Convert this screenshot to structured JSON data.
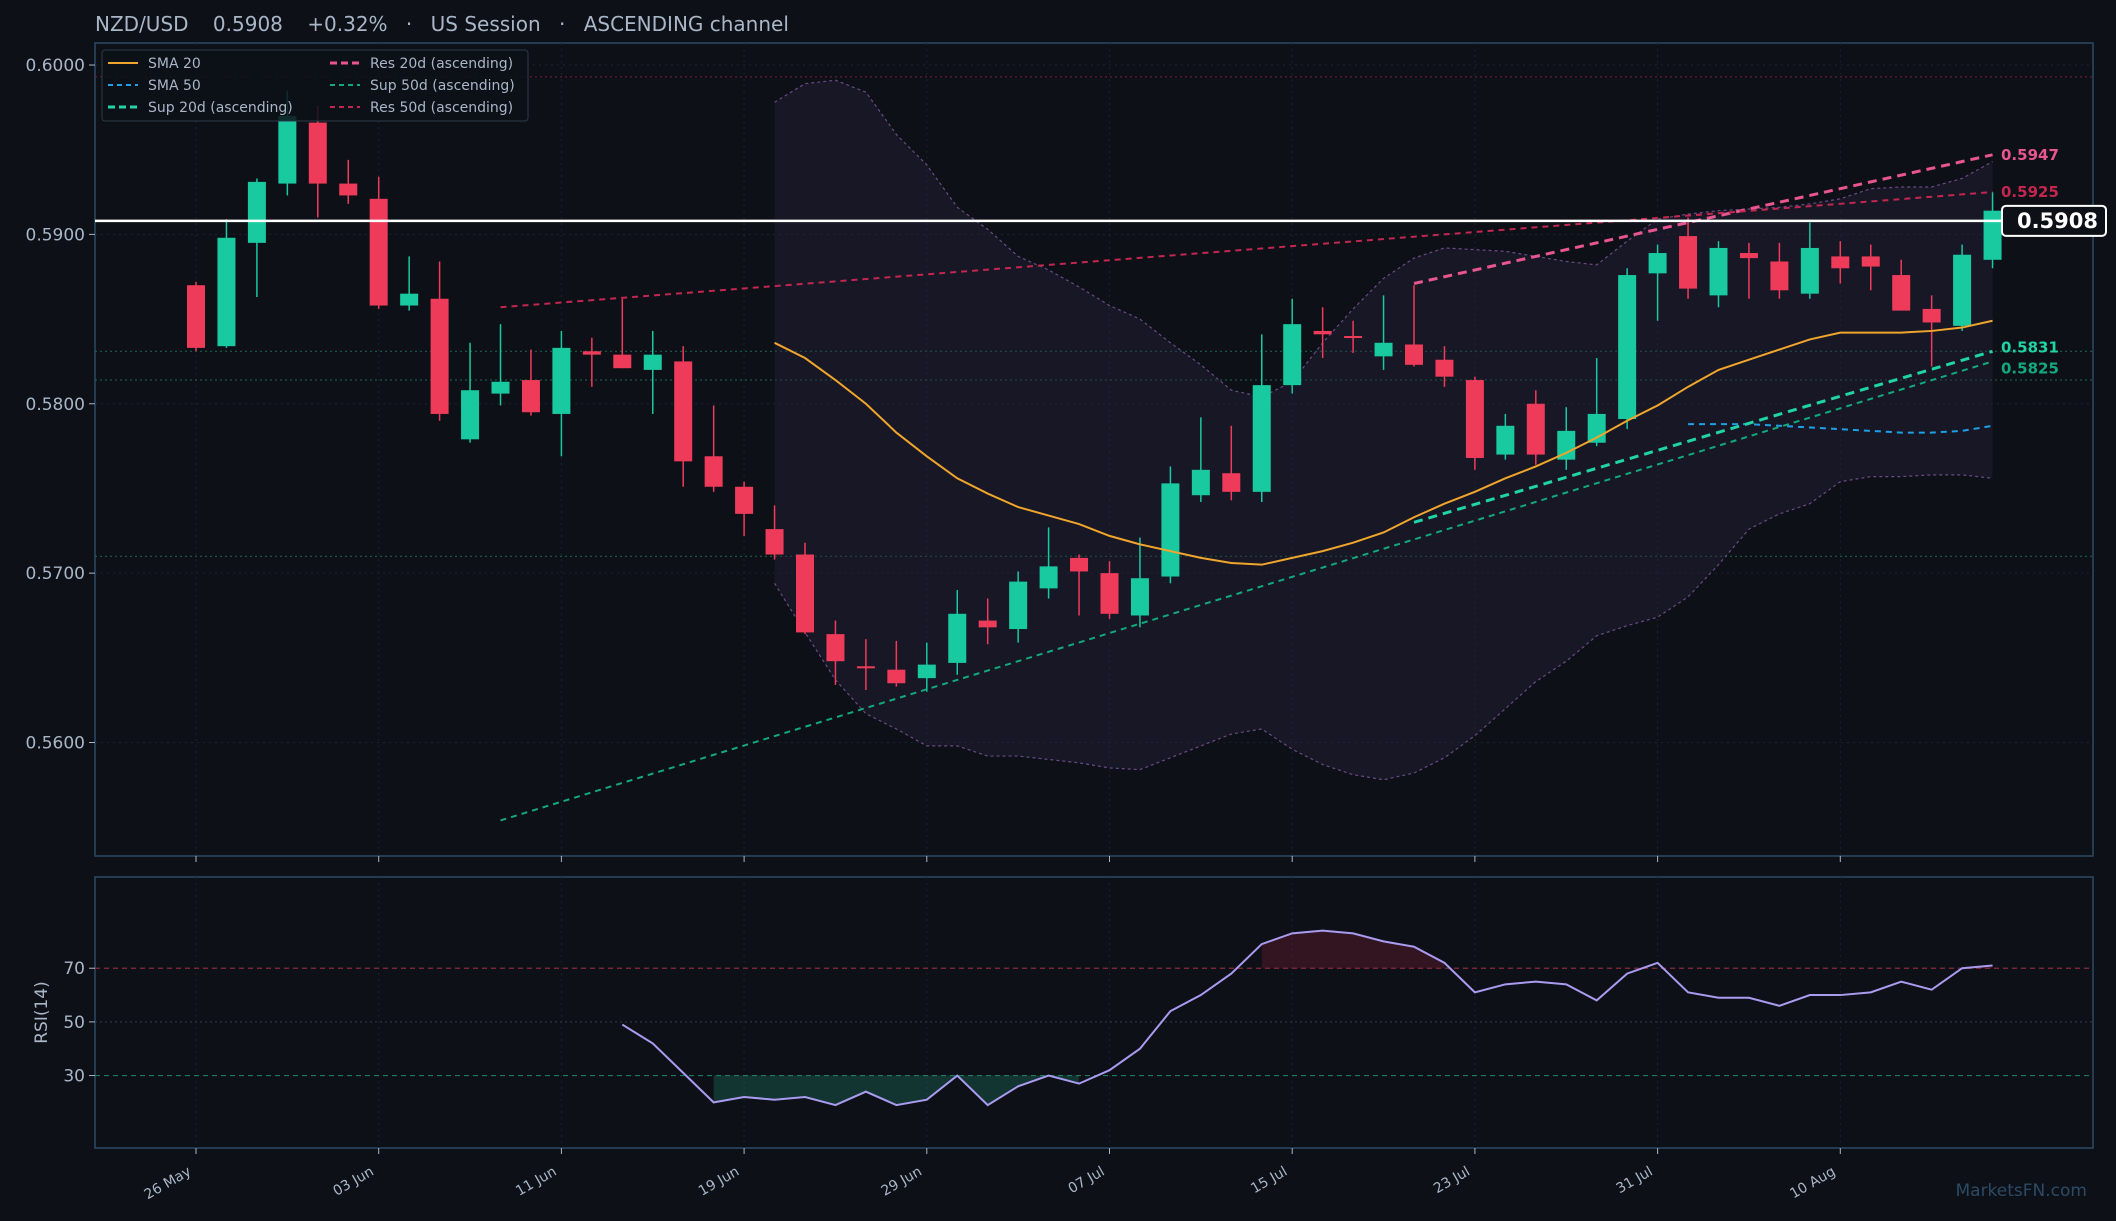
{
  "header": {
    "symbol": "NZD/USD",
    "price": "0.5908",
    "change": "+0.32%",
    "session": "US Session",
    "channel": "ASCENDING channel",
    "separator": "·"
  },
  "watermark": "MarketsFN.com",
  "colors": {
    "background": "#0d1017",
    "axes_border": "#2c4a66",
    "text": "#a9b6c8",
    "bull": "#19c9a0",
    "bear": "#ef3b5a",
    "sma20": "#f0a52c",
    "sma50": "#1ea0e6",
    "sup20": "#20d4a5",
    "sup50": "#12a97c",
    "res20": "#e9568f",
    "res50": "#c3274f",
    "rsi": "#a99bf0",
    "band": "#6a4a86",
    "price_line": "#ffffff"
  },
  "chart_data": [
    {
      "type": "candlestick",
      "title": "",
      "ylim": [
        0.5533,
        0.6013
      ],
      "yticks": [
        "0.5600",
        "0.5700",
        "0.5800",
        "0.5900",
        "0.6000"
      ],
      "xticks": [
        {
          "label": "26 May",
          "index": 0
        },
        {
          "label": "03 Jun",
          "index": 6
        },
        {
          "label": "11 Jun",
          "index": 12
        },
        {
          "label": "19 Jun",
          "index": 18
        },
        {
          "label": "29 Jun",
          "index": 24
        },
        {
          "label": "07 Jul",
          "index": 30
        },
        {
          "label": "15 Jul",
          "index": 36
        },
        {
          "label": "23 Jul",
          "index": 42
        },
        {
          "label": "31 Jul",
          "index": 48
        },
        {
          "label": "10 Aug",
          "index": 54
        }
      ],
      "candles": [
        {
          "o": 0.587,
          "h": 0.5872,
          "l": 0.5831,
          "c": 0.5833
        },
        {
          "o": 0.5834,
          "h": 0.5909,
          "l": 0.5833,
          "c": 0.5898
        },
        {
          "o": 0.5895,
          "h": 0.5933,
          "l": 0.5863,
          "c": 0.5931
        },
        {
          "o": 0.593,
          "h": 0.5985,
          "l": 0.5923,
          "c": 0.597
        },
        {
          "o": 0.5966,
          "h": 0.5976,
          "l": 0.591,
          "c": 0.593
        },
        {
          "o": 0.593,
          "h": 0.5944,
          "l": 0.5918,
          "c": 0.5923
        },
        {
          "o": 0.5921,
          "h": 0.5934,
          "l": 0.5856,
          "c": 0.5858
        },
        {
          "o": 0.5858,
          "h": 0.5887,
          "l": 0.5855,
          "c": 0.5865
        },
        {
          "o": 0.5862,
          "h": 0.5884,
          "l": 0.579,
          "c": 0.5794
        },
        {
          "o": 0.5779,
          "h": 0.5836,
          "l": 0.5777,
          "c": 0.5808
        },
        {
          "o": 0.5806,
          "h": 0.5847,
          "l": 0.5799,
          "c": 0.5813
        },
        {
          "o": 0.5814,
          "h": 0.5832,
          "l": 0.5793,
          "c": 0.5795
        },
        {
          "o": 0.5794,
          "h": 0.5843,
          "l": 0.5769,
          "c": 0.5833
        },
        {
          "o": 0.5831,
          "h": 0.5839,
          "l": 0.581,
          "c": 0.5829
        },
        {
          "o": 0.5829,
          "h": 0.5862,
          "l": 0.5821,
          "c": 0.5821
        },
        {
          "o": 0.582,
          "h": 0.5843,
          "l": 0.5794,
          "c": 0.5829
        },
        {
          "o": 0.5825,
          "h": 0.5834,
          "l": 0.5751,
          "c": 0.5766
        },
        {
          "o": 0.5769,
          "h": 0.5799,
          "l": 0.5748,
          "c": 0.5751
        },
        {
          "o": 0.5751,
          "h": 0.5754,
          "l": 0.5722,
          "c": 0.5735
        },
        {
          "o": 0.5726,
          "h": 0.574,
          "l": 0.5708,
          "c": 0.5711
        },
        {
          "o": 0.5711,
          "h": 0.5718,
          "l": 0.5664,
          "c": 0.5665
        },
        {
          "o": 0.5664,
          "h": 0.5672,
          "l": 0.5634,
          "c": 0.5648
        },
        {
          "o": 0.5645,
          "h": 0.5661,
          "l": 0.5631,
          "c": 0.5644
        },
        {
          "o": 0.5643,
          "h": 0.566,
          "l": 0.5633,
          "c": 0.5635
        },
        {
          "o": 0.5638,
          "h": 0.5659,
          "l": 0.563,
          "c": 0.5646
        },
        {
          "o": 0.5647,
          "h": 0.569,
          "l": 0.564,
          "c": 0.5676
        },
        {
          "o": 0.5672,
          "h": 0.5685,
          "l": 0.5658,
          "c": 0.5668
        },
        {
          "o": 0.5667,
          "h": 0.5701,
          "l": 0.5659,
          "c": 0.5695
        },
        {
          "o": 0.5691,
          "h": 0.5727,
          "l": 0.5685,
          "c": 0.5704
        },
        {
          "o": 0.5709,
          "h": 0.5711,
          "l": 0.5675,
          "c": 0.5701
        },
        {
          "o": 0.57,
          "h": 0.5707,
          "l": 0.5673,
          "c": 0.5676
        },
        {
          "o": 0.5675,
          "h": 0.5721,
          "l": 0.5668,
          "c": 0.5697
        },
        {
          "o": 0.5698,
          "h": 0.5763,
          "l": 0.5694,
          "c": 0.5753
        },
        {
          "o": 0.5746,
          "h": 0.5792,
          "l": 0.5742,
          "c": 0.5761
        },
        {
          "o": 0.5759,
          "h": 0.5787,
          "l": 0.5743,
          "c": 0.5748
        },
        {
          "o": 0.5748,
          "h": 0.5841,
          "l": 0.5742,
          "c": 0.5811
        },
        {
          "o": 0.5811,
          "h": 0.5862,
          "l": 0.5806,
          "c": 0.5847
        },
        {
          "o": 0.5843,
          "h": 0.5857,
          "l": 0.5827,
          "c": 0.5841
        },
        {
          "o": 0.584,
          "h": 0.5849,
          "l": 0.583,
          "c": 0.5839
        },
        {
          "o": 0.5828,
          "h": 0.5864,
          "l": 0.582,
          "c": 0.5836
        },
        {
          "o": 0.5835,
          "h": 0.587,
          "l": 0.5822,
          "c": 0.5823
        },
        {
          "o": 0.5826,
          "h": 0.5834,
          "l": 0.581,
          "c": 0.5816
        },
        {
          "o": 0.5814,
          "h": 0.5816,
          "l": 0.5761,
          "c": 0.5768
        },
        {
          "o": 0.577,
          "h": 0.5794,
          "l": 0.5767,
          "c": 0.5787
        },
        {
          "o": 0.58,
          "h": 0.5808,
          "l": 0.5764,
          "c": 0.577
        },
        {
          "o": 0.5767,
          "h": 0.5798,
          "l": 0.5761,
          "c": 0.5784
        },
        {
          "o": 0.5777,
          "h": 0.5827,
          "l": 0.5775,
          "c": 0.5794
        },
        {
          "o": 0.5791,
          "h": 0.588,
          "l": 0.5785,
          "c": 0.5876
        },
        {
          "o": 0.5877,
          "h": 0.5894,
          "l": 0.5849,
          "c": 0.5889
        },
        {
          "o": 0.5899,
          "h": 0.591,
          "l": 0.5862,
          "c": 0.5868
        },
        {
          "o": 0.5864,
          "h": 0.5896,
          "l": 0.5857,
          "c": 0.5892
        },
        {
          "o": 0.5889,
          "h": 0.5895,
          "l": 0.5862,
          "c": 0.5886
        },
        {
          "o": 0.5884,
          "h": 0.5895,
          "l": 0.5862,
          "c": 0.5867
        },
        {
          "o": 0.5865,
          "h": 0.5907,
          "l": 0.5862,
          "c": 0.5892
        },
        {
          "o": 0.5887,
          "h": 0.5896,
          "l": 0.5871,
          "c": 0.588
        },
        {
          "o": 0.5887,
          "h": 0.5894,
          "l": 0.5867,
          "c": 0.5881
        },
        {
          "o": 0.5876,
          "h": 0.5885,
          "l": 0.5855,
          "c": 0.5855
        },
        {
          "o": 0.5856,
          "h": 0.5864,
          "l": 0.5822,
          "c": 0.5848
        },
        {
          "o": 0.5846,
          "h": 0.5894,
          "l": 0.5843,
          "c": 0.5888
        },
        {
          "o": 0.5885,
          "h": 0.5925,
          "l": 0.588,
          "c": 0.5914
        }
      ],
      "last_price": 0.5908,
      "last_price_label": "0.5908",
      "horizontal_levels": [
        {
          "y": 0.5993,
          "kind": "resistance"
        },
        {
          "y": 0.5831,
          "kind": "support"
        },
        {
          "y": 0.5814,
          "kind": "support"
        },
        {
          "y": 0.571,
          "kind": "support"
        }
      ],
      "series": [
        {
          "name": "SMA 20",
          "key": "sma20",
          "style": "solid",
          "x": [
            19,
            20,
            21,
            22,
            23,
            24,
            25,
            26,
            27,
            28,
            29,
            30,
            31,
            32,
            33,
            34,
            35,
            36,
            37,
            38,
            39,
            40,
            41,
            42,
            43,
            44,
            45,
            46,
            47,
            48,
            49,
            50,
            51,
            52,
            53,
            54,
            55,
            56,
            57,
            58,
            59
          ],
          "y": [
            0.5836,
            0.5827,
            0.5814,
            0.58,
            0.5783,
            0.5769,
            0.5756,
            0.5747,
            0.5739,
            0.5734,
            0.5729,
            0.5722,
            0.5717,
            0.5713,
            0.5709,
            0.5706,
            0.5705,
            0.5709,
            0.5713,
            0.5718,
            0.5724,
            0.5733,
            0.5741,
            0.5748,
            0.5756,
            0.5763,
            0.5771,
            0.578,
            0.579,
            0.5799,
            0.581,
            0.582,
            0.5826,
            0.5832,
            0.5838,
            0.5842,
            0.5842,
            0.5842,
            0.5843,
            0.5845,
            0.5849
          ]
        },
        {
          "name": "SMA 50",
          "key": "sma50",
          "style": "dashed",
          "x": [
            49,
            50,
            51,
            52,
            53,
            54,
            55,
            56,
            57,
            58,
            59
          ],
          "y": [
            0.5788,
            0.5788,
            0.5788,
            0.5787,
            0.5786,
            0.5785,
            0.5784,
            0.5783,
            0.5783,
            0.5784,
            0.5787
          ]
        },
        {
          "name": "Sup 20d (ascending)",
          "key": "sup20",
          "style": "dashed-bold",
          "x": [
            40,
            59
          ],
          "y": [
            0.573,
            0.5831
          ],
          "end_label": "0.5831"
        },
        {
          "name": "Sup 50d (ascending)",
          "key": "sup50",
          "style": "dashed",
          "x": [
            10,
            59
          ],
          "y": [
            0.5554,
            0.5825
          ],
          "end_label": "0.5825"
        },
        {
          "name": "Res 20d (ascending)",
          "key": "res20",
          "style": "dashed-bold",
          "x": [
            40,
            59
          ],
          "y": [
            0.5871,
            0.5947
          ],
          "end_label": "0.5947"
        },
        {
          "name": "Res 50d (ascending)",
          "key": "res50",
          "style": "dashed",
          "x": [
            10,
            59
          ],
          "y": [
            0.5857,
            0.5925
          ],
          "end_label": "0.5925"
        }
      ],
      "bollinger": {
        "x": [
          19,
          20,
          21,
          22,
          23,
          24,
          25,
          26,
          27,
          28,
          29,
          30,
          31,
          32,
          33,
          34,
          35,
          36,
          37,
          38,
          39,
          40,
          41,
          42,
          43,
          44,
          45,
          46,
          47,
          48,
          49,
          50,
          51,
          52,
          53,
          54,
          55,
          56,
          57,
          58,
          59
        ],
        "upper": [
          0.5978,
          0.5989,
          0.5991,
          0.5984,
          0.5959,
          0.5941,
          0.5916,
          0.5903,
          0.5887,
          0.5879,
          0.5869,
          0.5858,
          0.585,
          0.5836,
          0.5823,
          0.5808,
          0.5804,
          0.5813,
          0.5836,
          0.5856,
          0.5874,
          0.5886,
          0.5892,
          0.5891,
          0.589,
          0.5887,
          0.5884,
          0.5882,
          0.5896,
          0.5909,
          0.5912,
          0.5914,
          0.5915,
          0.5916,
          0.5918,
          0.5921,
          0.5927,
          0.5928,
          0.5928,
          0.5933,
          0.5943
        ],
        "lower": [
          0.5694,
          0.5665,
          0.5637,
          0.5617,
          0.5608,
          0.5598,
          0.5598,
          0.5592,
          0.5592,
          0.559,
          0.5588,
          0.5585,
          0.5584,
          0.5591,
          0.5598,
          0.5605,
          0.5608,
          0.5596,
          0.5587,
          0.5581,
          0.5578,
          0.5582,
          0.5591,
          0.5604,
          0.562,
          0.5636,
          0.5648,
          0.5663,
          0.5669,
          0.5674,
          0.5686,
          0.5705,
          0.5726,
          0.5735,
          0.5741,
          0.5754,
          0.5757,
          0.5757,
          0.5758,
          0.5758,
          0.5756
        ]
      },
      "legend": {
        "placement": "top-left"
      }
    },
    {
      "type": "line",
      "ylabel": "RSI(14)",
      "ylim": [
        3,
        104
      ],
      "yticks": [
        30,
        50,
        70
      ],
      "levels": [
        70,
        50,
        30
      ],
      "series": [
        {
          "name": "RSI(14)",
          "x": [
            14,
            15,
            16,
            17,
            18,
            19,
            20,
            21,
            22,
            23,
            24,
            25,
            26,
            27,
            28,
            29,
            30,
            31,
            32,
            33,
            34,
            35,
            36,
            37,
            38,
            39,
            40,
            41,
            42,
            43,
            44,
            45,
            46,
            47,
            48,
            49,
            50,
            51,
            52,
            53,
            54,
            55,
            56,
            57,
            58,
            59
          ],
          "y": [
            49,
            42,
            31,
            20,
            22,
            21,
            22,
            19,
            24,
            19,
            21,
            30,
            19,
            26,
            30,
            27,
            32,
            40,
            54,
            60,
            68,
            79,
            83,
            84,
            83,
            80,
            78,
            72,
            61,
            64,
            65,
            64,
            58,
            68,
            72,
            61,
            59,
            59,
            56,
            60,
            60,
            61,
            65,
            62,
            70,
            71
          ]
        }
      ]
    }
  ]
}
